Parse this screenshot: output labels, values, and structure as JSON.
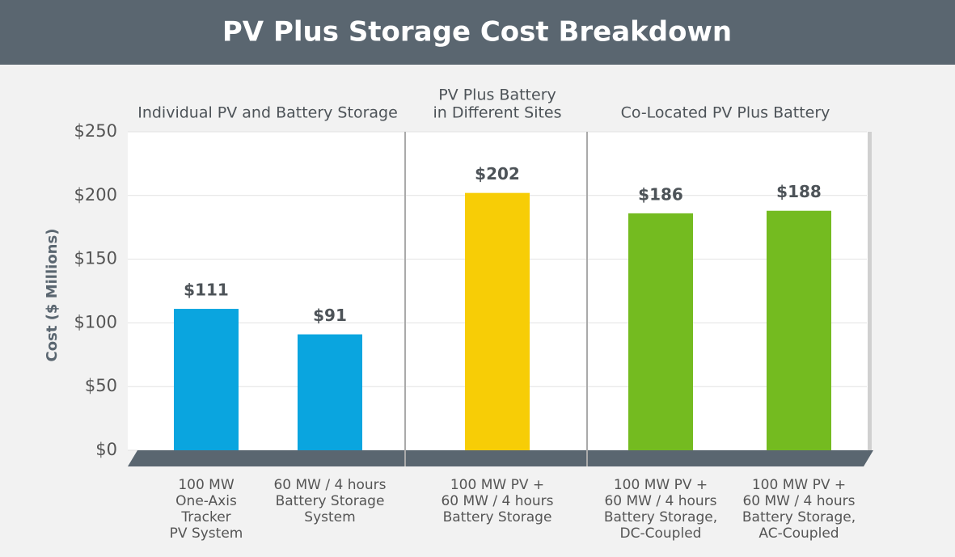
{
  "chart_data": {
    "type": "bar",
    "title": "PV Plus Storage Cost Breakdown",
    "y_label": "Cost ($ Millions)",
    "groups": [
      [
        "Individual PV and Battery Storage"
      ],
      [
        "PV Plus Battery",
        "in Different Sites"
      ],
      [
        "Co-Located PV Plus Battery"
      ]
    ],
    "categories": [
      [
        "100 MW",
        "One-Axis",
        "Tracker",
        "PV System"
      ],
      [
        "60 MW / 4 hours",
        "Battery Storage",
        "System"
      ],
      [
        "100 MW PV +",
        "60 MW / 4 hours",
        "Battery Storage"
      ],
      [
        "100 MW PV +",
        "60 MW / 4 hours",
        "Battery Storage,",
        "DC-Coupled"
      ],
      [
        "100 MW PV +",
        "60 MW / 4 hours",
        "Battery Storage,",
        "AC-Coupled"
      ]
    ],
    "values": [
      111,
      91,
      202,
      186,
      188
    ],
    "value_labels": [
      "$111",
      "$91",
      "$202",
      "$186",
      "$188"
    ],
    "colors": [
      "#0aa5df",
      "#0aa5df",
      "#f7cd06",
      "#74bb20",
      "#74bb20"
    ],
    "ylim": [
      0,
      250
    ],
    "yticks": [
      {
        "value": 0,
        "label": "$0"
      },
      {
        "value": 50,
        "label": "$50"
      },
      {
        "value": 100,
        "label": "$100"
      },
      {
        "value": 150,
        "label": "$150"
      },
      {
        "value": 200,
        "label": "$200"
      },
      {
        "value": 250,
        "label": "$250"
      }
    ],
    "grid": true
  }
}
